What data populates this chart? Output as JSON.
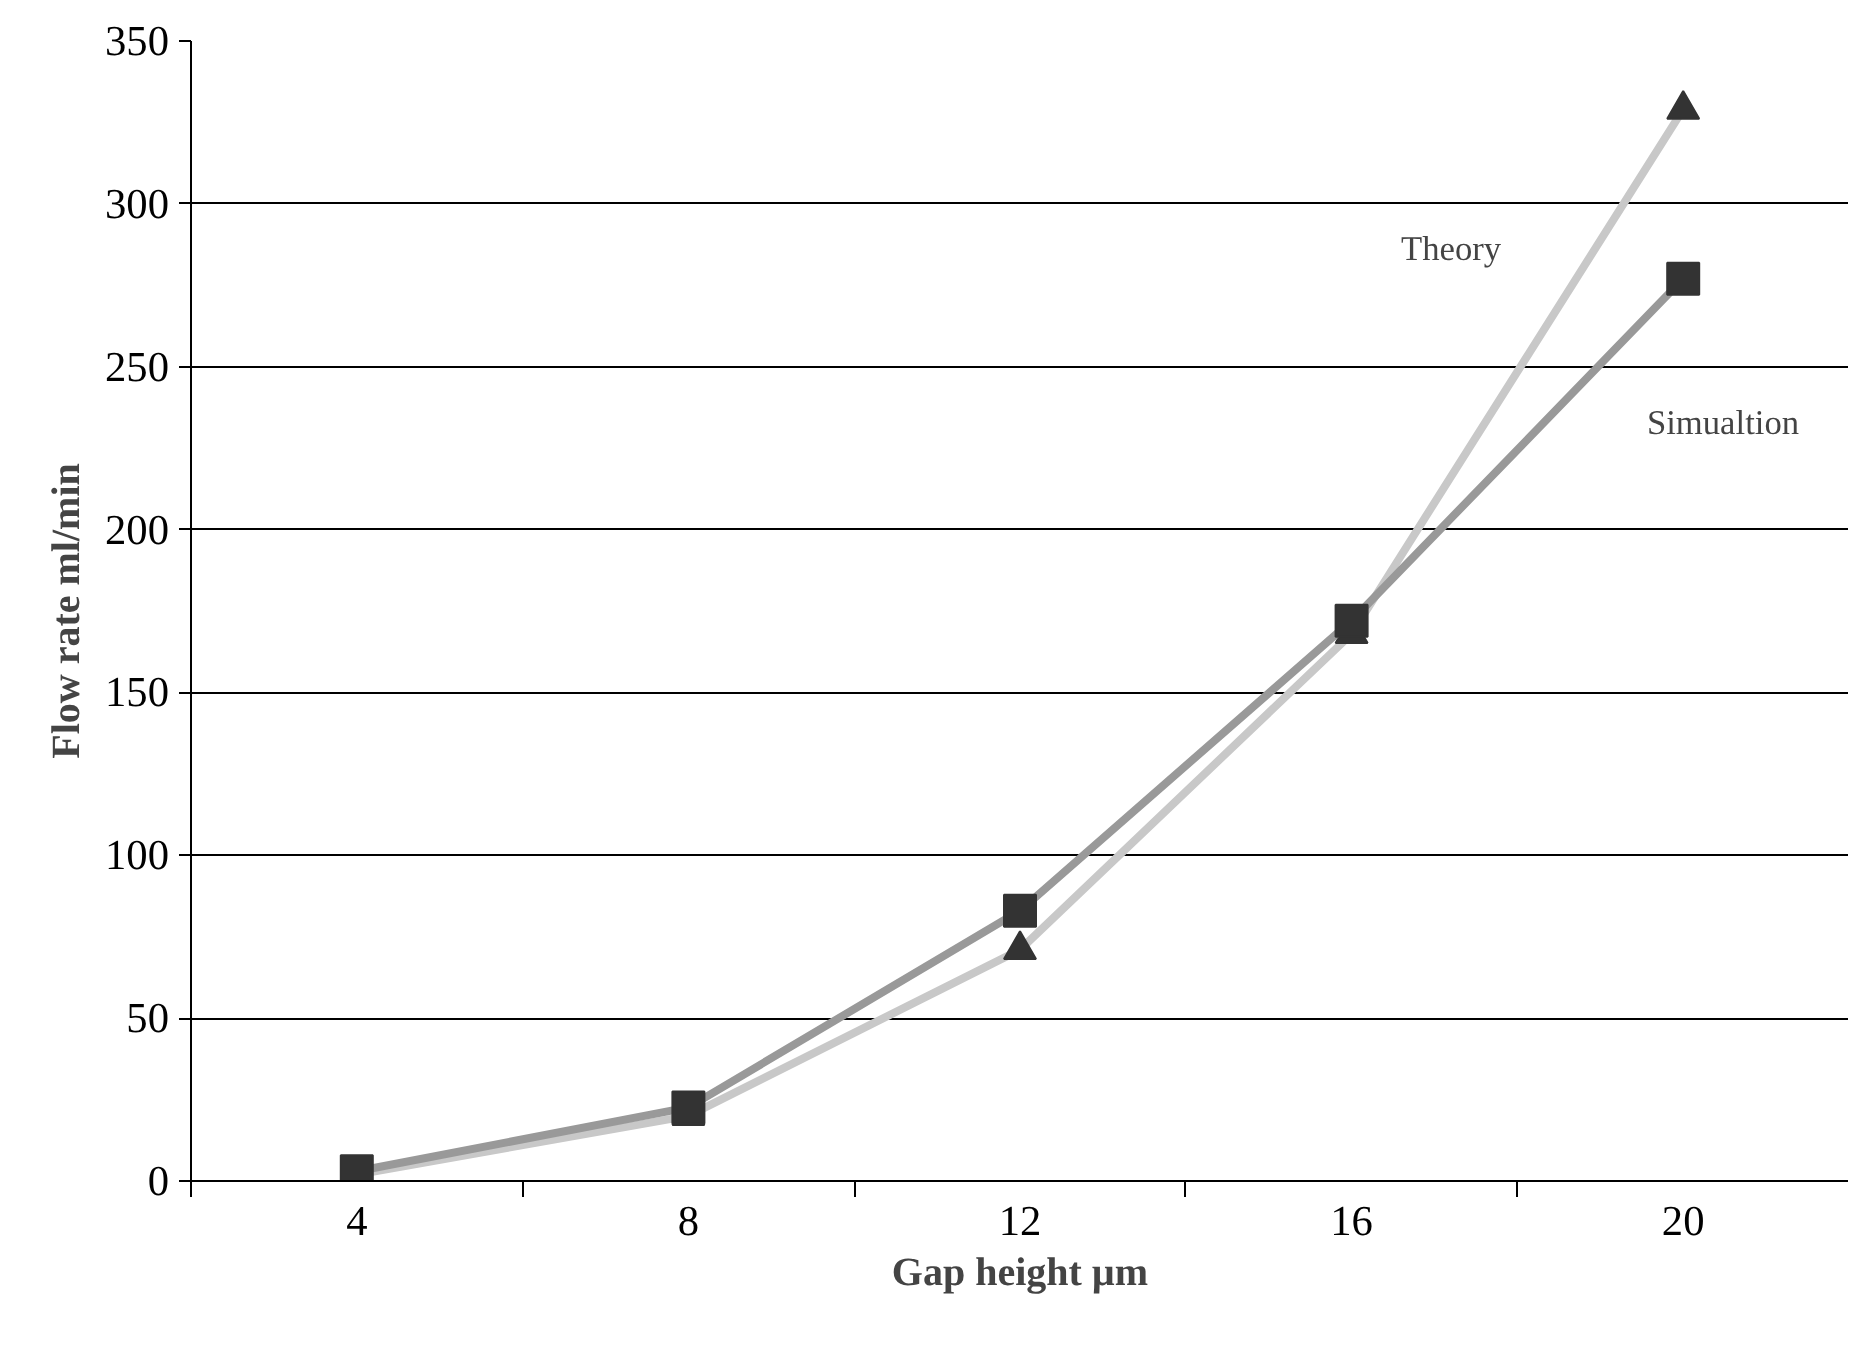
{
  "chart_data": {
    "type": "line",
    "xlabel": "Gap height µm",
    "ylabel": "Flow rate ml/min",
    "categories": [
      "4",
      "8",
      "12",
      "16",
      "20"
    ],
    "series": [
      {
        "name": "Theory",
        "color": "#c8c8c8",
        "marker": "triangle",
        "values": [
          2,
          20,
          71,
          168,
          329
        ]
      },
      {
        "name": "Simualtion",
        "color": "#999999",
        "marker": "square",
        "values": [
          3,
          22.6,
          83,
          172,
          277
        ]
      }
    ],
    "ylim": [
      0,
      350
    ],
    "yticks": [
      0,
      50,
      100,
      150,
      200,
      250,
      300,
      350
    ],
    "grid": "y"
  }
}
